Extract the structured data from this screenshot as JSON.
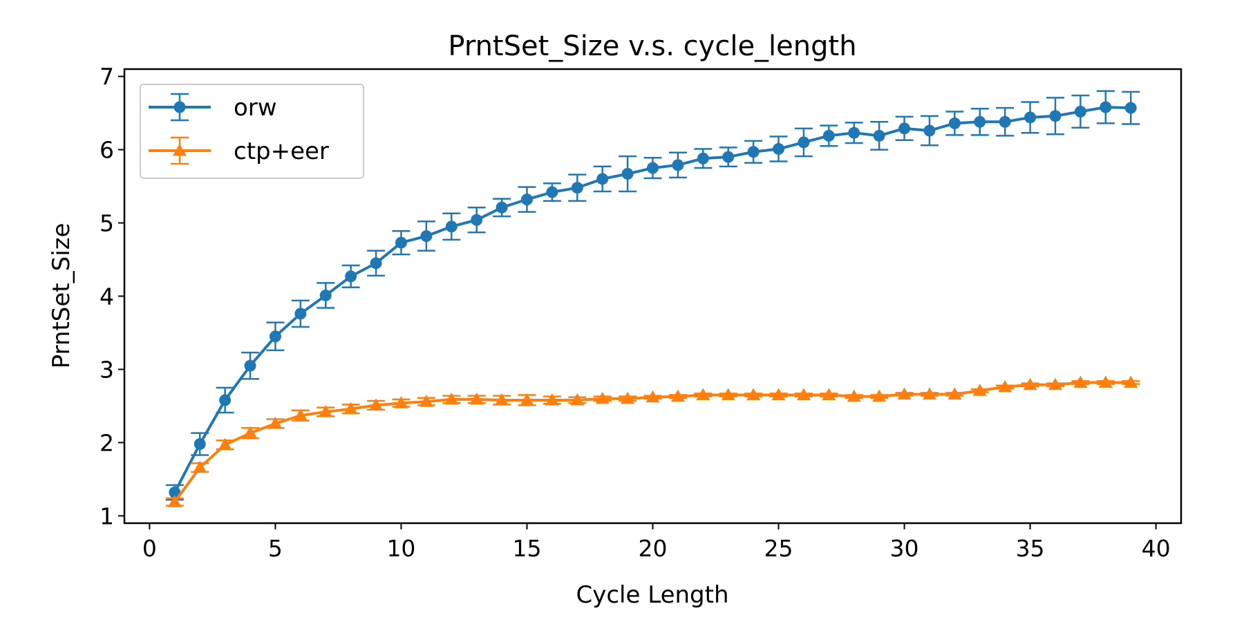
{
  "chart_data": {
    "type": "line",
    "title": "PrntSet_Size v.s. cycle_length",
    "xlabel": "Cycle Length",
    "ylabel": "PrntSet_Size",
    "xlim": [
      -1,
      41
    ],
    "ylim": [
      0.9,
      7.1
    ],
    "xticks": [
      0,
      5,
      10,
      15,
      20,
      25,
      30,
      35,
      40
    ],
    "yticks": [
      1,
      2,
      3,
      4,
      5,
      6,
      7
    ],
    "grid": false,
    "legend_position": "top-left",
    "x": [
      1,
      2,
      3,
      4,
      5,
      6,
      7,
      8,
      9,
      10,
      11,
      12,
      13,
      14,
      15,
      16,
      17,
      18,
      19,
      20,
      21,
      22,
      23,
      24,
      25,
      26,
      27,
      28,
      29,
      30,
      31,
      32,
      33,
      34,
      35,
      36,
      37,
      38,
      39
    ],
    "series": [
      {
        "name": "orw",
        "color": "#1f77b4",
        "marker": "circle",
        "values": [
          1.32,
          1.98,
          2.58,
          3.05,
          3.45,
          3.76,
          4.01,
          4.27,
          4.45,
          4.73,
          4.82,
          4.95,
          5.04,
          5.21,
          5.32,
          5.42,
          5.48,
          5.6,
          5.67,
          5.75,
          5.79,
          5.88,
          5.9,
          5.97,
          6.01,
          6.1,
          6.19,
          6.23,
          6.19,
          6.29,
          6.26,
          6.36,
          6.38,
          6.38,
          6.44,
          6.46,
          6.52,
          6.58,
          6.57
        ],
        "errors": [
          0.1,
          0.15,
          0.17,
          0.18,
          0.19,
          0.18,
          0.17,
          0.15,
          0.17,
          0.16,
          0.2,
          0.18,
          0.17,
          0.12,
          0.17,
          0.12,
          0.18,
          0.17,
          0.24,
          0.14,
          0.17,
          0.13,
          0.13,
          0.15,
          0.17,
          0.19,
          0.14,
          0.14,
          0.19,
          0.16,
          0.2,
          0.16,
          0.18,
          0.19,
          0.21,
          0.25,
          0.22,
          0.22,
          0.22
        ]
      },
      {
        "name": "ctp+eer",
        "color": "#ff7f0e",
        "marker": "triangle",
        "values": [
          1.19,
          1.66,
          1.97,
          2.13,
          2.26,
          2.37,
          2.42,
          2.46,
          2.51,
          2.54,
          2.56,
          2.59,
          2.59,
          2.58,
          2.58,
          2.58,
          2.58,
          2.6,
          2.6,
          2.62,
          2.63,
          2.65,
          2.65,
          2.65,
          2.65,
          2.65,
          2.65,
          2.63,
          2.63,
          2.66,
          2.66,
          2.66,
          2.71,
          2.76,
          2.79,
          2.79,
          2.82,
          2.82,
          2.82
        ],
        "errors": [
          0.05,
          0.06,
          0.06,
          0.07,
          0.06,
          0.07,
          0.06,
          0.06,
          0.06,
          0.05,
          0.05,
          0.05,
          0.05,
          0.06,
          0.07,
          0.05,
          0.04,
          0.03,
          0.03,
          0.02,
          0.02,
          0.02,
          0.02,
          0.02,
          0.02,
          0.02,
          0.02,
          0.02,
          0.02,
          0.02,
          0.02,
          0.02,
          0.02,
          0.02,
          0.02,
          0.02,
          0.02,
          0.02,
          0.02
        ]
      }
    ]
  }
}
